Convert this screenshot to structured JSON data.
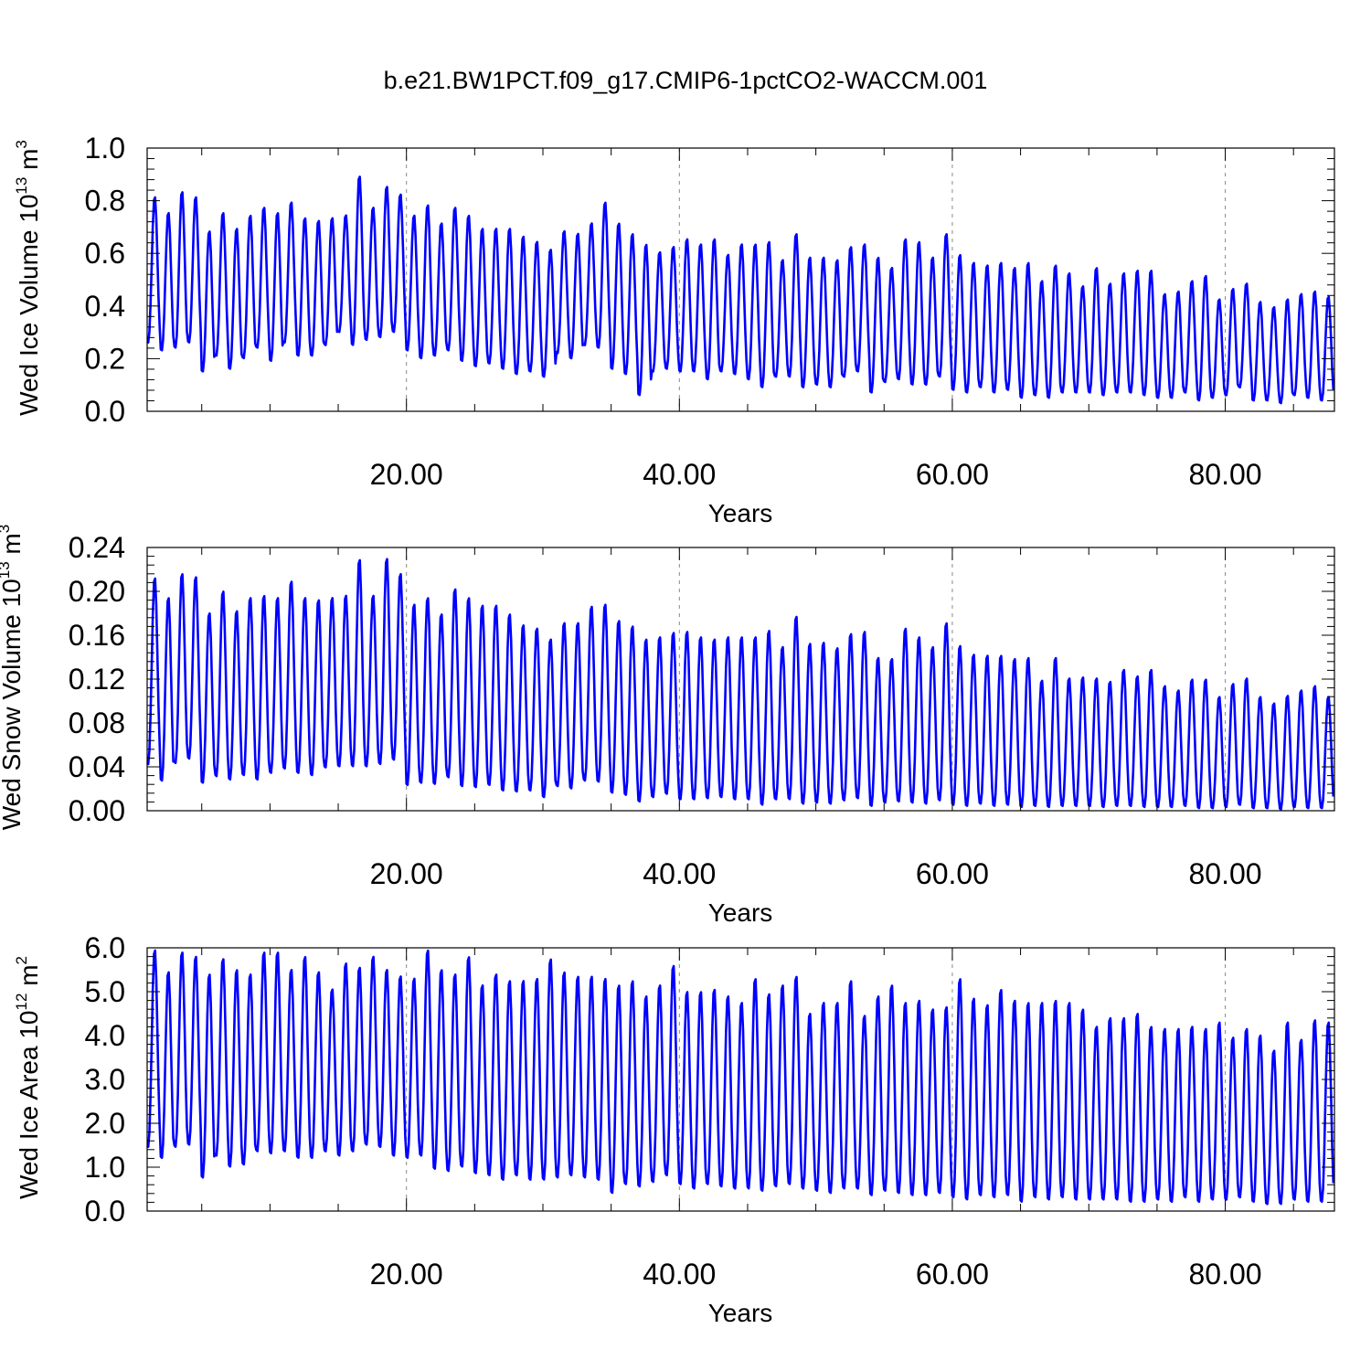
{
  "title": "b.e21.BW1PCT.f09_g17.CMIP6-1pctCO2-WACCM.001",
  "chart_data": [
    {
      "type": "line",
      "ylabel": "Wed Ice Volume 10",
      "yunit_exp": "13",
      "yunit": " m",
      "yunit_pow": "3",
      "xlabel": "Years",
      "xlim": [
        1,
        88
      ],
      "ylim": [
        0.0,
        1.0
      ],
      "xticks": [
        20,
        40,
        60,
        80
      ],
      "xtick_labels": [
        "20.00",
        "40.00",
        "60.00",
        "80.00"
      ],
      "yticks": [
        0.0,
        0.2,
        0.4,
        0.6,
        0.8,
        1.0
      ],
      "ytick_labels": [
        "0.0",
        "0.2",
        "0.4",
        "0.6",
        "0.8",
        "1.0"
      ],
      "grid": "dashed vertical at labeled x ticks",
      "color": "#0000ff",
      "series": [
        {
          "x_start": 1,
          "annual_max": [
            0.82,
            0.76,
            0.84,
            0.82,
            0.69,
            0.76,
            0.7,
            0.75,
            0.78,
            0.76,
            0.8,
            0.74,
            0.73,
            0.74,
            0.75,
            0.9,
            0.78,
            0.86,
            0.83,
            0.75,
            0.79,
            0.72,
            0.78,
            0.75,
            0.7,
            0.7,
            0.7,
            0.67,
            0.65,
            0.62,
            0.69,
            0.68,
            0.72,
            0.8,
            0.72,
            0.68,
            0.64,
            0.61,
            0.63,
            0.66,
            0.64,
            0.66,
            0.6,
            0.64,
            0.64,
            0.65,
            0.58,
            0.68,
            0.59,
            0.59,
            0.58,
            0.63,
            0.64,
            0.59,
            0.55,
            0.66,
            0.65,
            0.59,
            0.68,
            0.6,
            0.57,
            0.56,
            0.57,
            0.55,
            0.57,
            0.5,
            0.56,
            0.53,
            0.48,
            0.55,
            0.49,
            0.53,
            0.54,
            0.54,
            0.45,
            0.46,
            0.5,
            0.52,
            0.43,
            0.47,
            0.49,
            0.42,
            0.4,
            0.43,
            0.45,
            0.46,
            0.44
          ],
          "annual_min": [
            0.26,
            0.23,
            0.24,
            0.26,
            0.15,
            0.21,
            0.16,
            0.2,
            0.24,
            0.19,
            0.26,
            0.21,
            0.21,
            0.25,
            0.3,
            0.25,
            0.27,
            0.28,
            0.3,
            0.23,
            0.2,
            0.21,
            0.23,
            0.19,
            0.17,
            0.18,
            0.16,
            0.14,
            0.15,
            0.13,
            0.22,
            0.2,
            0.25,
            0.24,
            0.16,
            0.14,
            0.06,
            0.15,
            0.16,
            0.15,
            0.15,
            0.12,
            0.15,
            0.14,
            0.12,
            0.09,
            0.13,
            0.13,
            0.09,
            0.1,
            0.09,
            0.13,
            0.15,
            0.07,
            0.11,
            0.12,
            0.1,
            0.1,
            0.13,
            0.08,
            0.07,
            0.09,
            0.07,
            0.08,
            0.05,
            0.06,
            0.05,
            0.07,
            0.07,
            0.07,
            0.06,
            0.07,
            0.07,
            0.06,
            0.05,
            0.05,
            0.07,
            0.04,
            0.05,
            0.06,
            0.09,
            0.04,
            0.04,
            0.03,
            0.06,
            0.05,
            0.04
          ],
          "x_end": 88
        }
      ]
    },
    {
      "type": "line",
      "ylabel": "Wed Snow Volume 10",
      "yunit_exp": "13",
      "yunit": " m",
      "yunit_pow": "3",
      "xlabel": "Years",
      "xlim": [
        1,
        88
      ],
      "ylim": [
        0.0,
        0.24
      ],
      "xticks": [
        20,
        40,
        60,
        80
      ],
      "xtick_labels": [
        "20.00",
        "40.00",
        "60.00",
        "80.00"
      ],
      "yticks": [
        0.0,
        0.04,
        0.08,
        0.12,
        0.16,
        0.2,
        0.24
      ],
      "ytick_labels": [
        "0.00",
        "0.04",
        "0.08",
        "0.12",
        "0.16",
        "0.20",
        "0.24"
      ],
      "grid": "dashed vertical at labeled x ticks",
      "color": "#0000ff",
      "series": [
        {
          "x_start": 1,
          "annual_max": [
            0.214,
            0.196,
            0.218,
            0.215,
            0.182,
            0.202,
            0.184,
            0.196,
            0.198,
            0.196,
            0.211,
            0.196,
            0.194,
            0.196,
            0.198,
            0.231,
            0.198,
            0.232,
            0.218,
            0.19,
            0.196,
            0.181,
            0.204,
            0.196,
            0.189,
            0.189,
            0.181,
            0.171,
            0.168,
            0.158,
            0.173,
            0.173,
            0.188,
            0.19,
            0.175,
            0.17,
            0.158,
            0.16,
            0.164,
            0.165,
            0.16,
            0.158,
            0.16,
            0.16,
            0.16,
            0.166,
            0.151,
            0.179,
            0.154,
            0.155,
            0.15,
            0.163,
            0.165,
            0.141,
            0.14,
            0.168,
            0.16,
            0.151,
            0.173,
            0.152,
            0.144,
            0.143,
            0.143,
            0.14,
            0.141,
            0.12,
            0.141,
            0.122,
            0.123,
            0.122,
            0.119,
            0.13,
            0.124,
            0.13,
            0.115,
            0.111,
            0.121,
            0.121,
            0.105,
            0.117,
            0.122,
            0.105,
            0.099,
            0.106,
            0.111,
            0.115,
            0.105
          ],
          "annual_min": [
            0.042,
            0.027,
            0.043,
            0.047,
            0.025,
            0.031,
            0.028,
            0.032,
            0.028,
            0.034,
            0.038,
            0.034,
            0.032,
            0.039,
            0.04,
            0.04,
            0.04,
            0.042,
            0.046,
            0.023,
            0.025,
            0.024,
            0.03,
            0.022,
            0.021,
            0.023,
            0.018,
            0.017,
            0.018,
            0.012,
            0.022,
            0.02,
            0.027,
            0.026,
            0.016,
            0.014,
            0.008,
            0.012,
            0.015,
            0.01,
            0.01,
            0.011,
            0.012,
            0.01,
            0.01,
            0.005,
            0.01,
            0.01,
            0.006,
            0.007,
            0.006,
            0.009,
            0.011,
            0.004,
            0.007,
            0.008,
            0.007,
            0.006,
            0.009,
            0.005,
            0.004,
            0.006,
            0.004,
            0.005,
            0.003,
            0.004,
            0.003,
            0.004,
            0.004,
            0.004,
            0.003,
            0.004,
            0.004,
            0.003,
            0.003,
            0.003,
            0.004,
            0.002,
            0.002,
            0.003,
            0.005,
            0.002,
            0.002,
            0.001,
            0.003,
            0.002,
            0.002
          ],
          "x_end": 88
        }
      ]
    },
    {
      "type": "line",
      "ylabel": "Wed Ice Area 10",
      "yunit_exp": "12",
      "yunit": " m",
      "yunit_pow": "2",
      "xlabel": "Years",
      "xlim": [
        1,
        88
      ],
      "ylim": [
        0.0,
        6.0
      ],
      "xticks": [
        20,
        40,
        60,
        80
      ],
      "xtick_labels": [
        "20.00",
        "40.00",
        "60.00",
        "80.00"
      ],
      "yticks": [
        0.0,
        1.0,
        2.0,
        3.0,
        4.0,
        5.0,
        6.0
      ],
      "ytick_labels": [
        "0.0",
        "1.0",
        "2.0",
        "3.0",
        "4.0",
        "5.0",
        "6.0"
      ],
      "grid": "dashed vertical at labeled x ticks",
      "color": "#0000ff",
      "series": [
        {
          "x_start": 1,
          "annual_max": [
            6.0,
            5.5,
            5.95,
            5.85,
            5.45,
            5.8,
            5.55,
            5.45,
            5.95,
            5.95,
            5.55,
            5.85,
            5.5,
            5.1,
            5.7,
            5.6,
            5.85,
            5.55,
            5.4,
            5.35,
            6.0,
            5.55,
            5.45,
            5.85,
            5.2,
            5.45,
            5.3,
            5.3,
            5.35,
            5.8,
            5.5,
            5.4,
            5.4,
            5.35,
            5.2,
            5.3,
            4.95,
            5.2,
            5.65,
            5.05,
            5.05,
            5.1,
            4.95,
            4.8,
            5.35,
            5.0,
            5.2,
            5.4,
            4.55,
            4.8,
            4.8,
            5.3,
            4.5,
            4.95,
            5.2,
            4.8,
            4.85,
            4.65,
            4.7,
            5.35,
            4.9,
            4.75,
            5.1,
            4.85,
            4.8,
            4.8,
            4.85,
            4.8,
            4.65,
            4.25,
            4.45,
            4.45,
            4.55,
            4.25,
            4.2,
            4.2,
            4.25,
            4.2,
            4.35,
            4.0,
            4.2,
            4.05,
            3.7,
            4.35,
            3.95,
            4.4,
            4.35
          ],
          "annual_min": [
            1.45,
            1.2,
            1.45,
            1.5,
            0.75,
            1.25,
            1.0,
            1.05,
            1.35,
            1.3,
            1.35,
            1.2,
            1.2,
            1.35,
            1.25,
            1.35,
            1.5,
            1.45,
            1.25,
            1.2,
            1.25,
            0.95,
            0.9,
            1.0,
            0.85,
            0.8,
            0.7,
            0.8,
            0.7,
            0.7,
            0.75,
            0.8,
            0.75,
            0.7,
            0.4,
            0.6,
            0.55,
            0.65,
            0.8,
            0.6,
            0.5,
            0.6,
            0.55,
            0.5,
            0.5,
            0.45,
            0.55,
            0.6,
            0.5,
            0.45,
            0.4,
            0.5,
            0.5,
            0.35,
            0.45,
            0.4,
            0.35,
            0.35,
            0.4,
            0.3,
            0.25,
            0.35,
            0.3,
            0.35,
            0.2,
            0.3,
            0.25,
            0.3,
            0.25,
            0.25,
            0.25,
            0.25,
            0.2,
            0.2,
            0.25,
            0.2,
            0.3,
            0.2,
            0.25,
            0.25,
            0.3,
            0.2,
            0.15,
            0.15,
            0.25,
            0.2,
            0.2
          ],
          "x_end": 88
        }
      ]
    }
  ]
}
